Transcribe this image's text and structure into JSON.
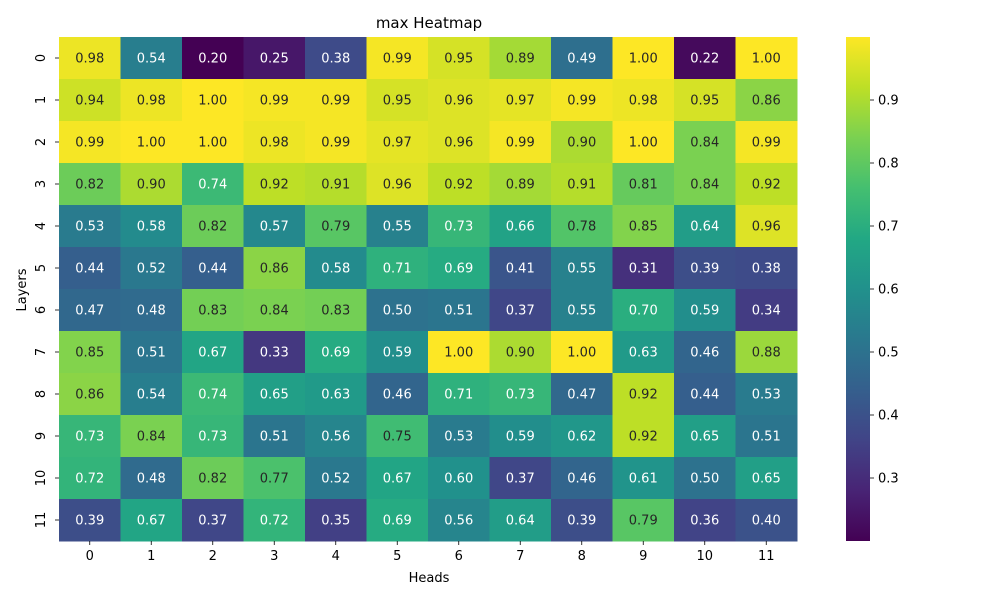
{
  "chart_data": {
    "type": "heatmap",
    "title": "max Heatmap",
    "xlabel": "Heads",
    "ylabel": "Layers",
    "x_categories": [
      "0",
      "1",
      "2",
      "3",
      "4",
      "5",
      "6",
      "7",
      "8",
      "9",
      "10",
      "11"
    ],
    "y_categories": [
      "0",
      "1",
      "2",
      "3",
      "4",
      "5",
      "6",
      "7",
      "8",
      "9",
      "10",
      "11"
    ],
    "values": [
      [
        0.98,
        0.54,
        0.2,
        0.25,
        0.38,
        0.99,
        0.95,
        0.89,
        0.49,
        1.0,
        0.22,
        1.0
      ],
      [
        0.94,
        0.98,
        1.0,
        0.99,
        0.99,
        0.95,
        0.96,
        0.97,
        0.99,
        0.98,
        0.95,
        0.86
      ],
      [
        0.99,
        1.0,
        1.0,
        0.98,
        0.99,
        0.97,
        0.96,
        0.99,
        0.9,
        1.0,
        0.84,
        0.99
      ],
      [
        0.82,
        0.9,
        0.74,
        0.92,
        0.91,
        0.96,
        0.92,
        0.89,
        0.91,
        0.81,
        0.84,
        0.92
      ],
      [
        0.53,
        0.58,
        0.82,
        0.57,
        0.79,
        0.55,
        0.73,
        0.66,
        0.78,
        0.85,
        0.64,
        0.96
      ],
      [
        0.44,
        0.52,
        0.44,
        0.86,
        0.58,
        0.71,
        0.69,
        0.41,
        0.55,
        0.31,
        0.39,
        0.38
      ],
      [
        0.47,
        0.48,
        0.83,
        0.84,
        0.83,
        0.5,
        0.51,
        0.37,
        0.55,
        0.7,
        0.59,
        0.34
      ],
      [
        0.85,
        0.51,
        0.67,
        0.33,
        0.69,
        0.59,
        1.0,
        0.9,
        1.0,
        0.63,
        0.46,
        0.88
      ],
      [
        0.86,
        0.54,
        0.74,
        0.65,
        0.63,
        0.46,
        0.71,
        0.73,
        0.47,
        0.92,
        0.44,
        0.53
      ],
      [
        0.73,
        0.84,
        0.73,
        0.51,
        0.56,
        0.75,
        0.53,
        0.59,
        0.62,
        0.92,
        0.65,
        0.51
      ],
      [
        0.72,
        0.48,
        0.82,
        0.77,
        0.52,
        0.67,
        0.6,
        0.37,
        0.46,
        0.61,
        0.5,
        0.65
      ],
      [
        0.39,
        0.67,
        0.37,
        0.72,
        0.35,
        0.69,
        0.56,
        0.64,
        0.39,
        0.79,
        0.36,
        0.4
      ]
    ],
    "colormap": "viridis",
    "color_range": [
      0.2,
      1.0
    ],
    "colorbar_ticks": [
      0.3,
      0.4,
      0.5,
      0.6,
      0.7,
      0.8,
      0.9
    ],
    "colorbar_tick_labels": [
      "0.3",
      "0.4",
      "0.5",
      "0.6",
      "0.7",
      "0.8",
      "0.9"
    ],
    "annotations": "values shown in cells, 2 decimals",
    "legend_placement": "right colorbar"
  }
}
